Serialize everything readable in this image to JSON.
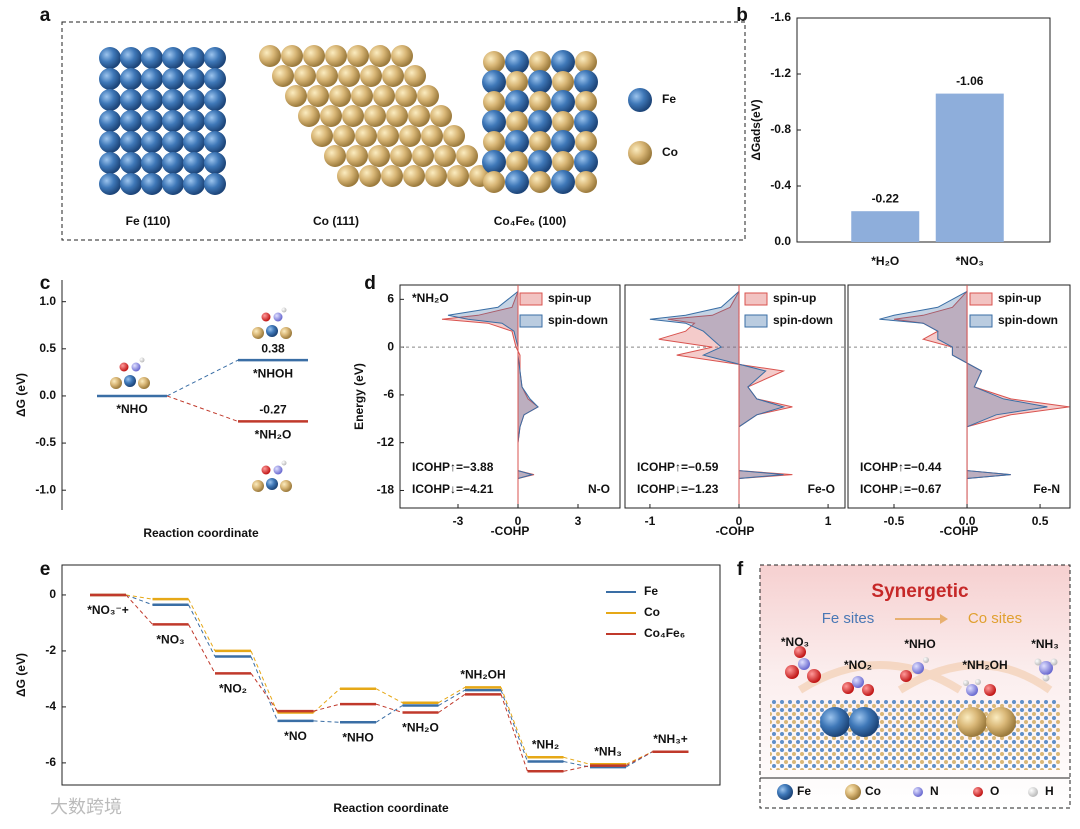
{
  "panel_labels": [
    "a",
    "b",
    "c",
    "d",
    "e",
    "f"
  ],
  "panel_a": {
    "surfaces": [
      "Fe (110)",
      "Co (111)",
      "Co₄Fe₆ (100)"
    ],
    "legend": [
      "Fe",
      "Co"
    ]
  },
  "chart_data": [
    {
      "type": "bar",
      "ylabel": "ΔGads(eV)",
      "categories": [
        "*H₂O",
        "*NO₃"
      ],
      "values": [
        -0.22,
        -1.06
      ],
      "color": "#8eaedb",
      "ylim": [
        0,
        -1.6
      ],
      "yticks": [
        -1.6,
        -1.2,
        -0.8,
        -0.4,
        {
          "value": 0,
          "label": "0.0"
        }
      ]
    },
    {
      "type": "energy_levels",
      "ylabel": "ΔG (eV)",
      "xlabel": "Reaction coordinate",
      "categories": [
        "*NHO",
        "*NHOH",
        "*NH₂O"
      ],
      "values": [
        0,
        0.38,
        -0.27
      ],
      "value_labels": [
        null,
        "0.38",
        "-0.27"
      ],
      "colors": [
        "#3a6ea5",
        "#3a6ea5",
        "#c0392b"
      ],
      "ylim": [
        -1.21,
        1.23
      ],
      "yticks": [
        {
          "value": -1,
          "label": "-1.0"
        },
        -0.5,
        {
          "value": 0,
          "label": "0.0"
        },
        0.5,
        {
          "value": 1,
          "label": "1.0"
        }
      ]
    },
    {
      "type": "cohp",
      "title": "*NH₂O",
      "bond": "N-O",
      "annotations": [
        "ICOHP↑=−3.88",
        "ICOHP↓=−4.21"
      ],
      "ylabel": "Energy (eV)",
      "xlabel": "-COHP",
      "y": [
        7,
        5,
        4,
        3.5,
        3,
        2,
        1,
        0,
        -1,
        -3,
        -5,
        -6.5,
        -7.5,
        -8.5,
        -10,
        -12,
        -15.5,
        -16,
        -16.5,
        -19
      ],
      "series": [
        {
          "name": "spin-up",
          "color": "#d9534f",
          "values": [
            0,
            -0.3,
            -2,
            -3.8,
            -1.5,
            -0.3,
            -0.2,
            -0.1,
            0.1,
            0.1,
            0.2,
            0.5,
            1.0,
            0.3,
            0.1,
            0,
            0,
            0.8,
            0,
            0
          ]
        },
        {
          "name": "spin-down",
          "color": "#3a6ea5",
          "values": [
            0,
            -1,
            -3.5,
            -2.5,
            -0.8,
            -0.2,
            -0.1,
            0,
            0,
            0.1,
            0.2,
            0.6,
            1.0,
            0.3,
            0.1,
            0,
            0,
            0.7,
            0,
            0
          ]
        }
      ],
      "xlim": [
        -5.9,
        5.1
      ],
      "xticks": [
        -3,
        0,
        3
      ],
      "ylim": [
        -20.2,
        7.8
      ],
      "yticks": [
        6,
        0,
        -6,
        -12,
        -18
      ]
    },
    {
      "type": "cohp",
      "bond": "Fe-O",
      "annotations": [
        "ICOHP↑=−0.59",
        "ICOHP↓=−1.23"
      ],
      "xlabel": "-COHP",
      "y": [
        7,
        5,
        4,
        3.5,
        3,
        2,
        1,
        0,
        -1,
        -3,
        -5,
        -6.5,
        -7.5,
        -8.5,
        -10,
        -12,
        -15.5,
        -16,
        -16.5,
        -19
      ],
      "series": [
        {
          "name": "spin-up",
          "color": "#d9534f",
          "values": [
            0,
            -0.1,
            -0.3,
            -0.8,
            -0.5,
            -0.6,
            -0.9,
            -0.3,
            -0.7,
            0.5,
            0.1,
            0.2,
            0.6,
            0.2,
            0,
            0,
            0,
            0.6,
            0,
            0
          ]
        },
        {
          "name": "spin-down",
          "color": "#3a6ea5",
          "values": [
            0,
            -0.2,
            -0.6,
            -1.0,
            -0.6,
            -0.4,
            -0.3,
            -0.2,
            -0.4,
            0.3,
            0.1,
            0.2,
            0.5,
            0.2,
            0,
            0,
            0,
            0.5,
            0,
            0
          ]
        }
      ],
      "xlim": [
        -1.28,
        1.19
      ],
      "xticks": [
        -1,
        0,
        1
      ],
      "ylim": [
        -20.2,
        7.8
      ]
    },
    {
      "type": "cohp",
      "bond": "Fe-N",
      "annotations": [
        "ICOHP↑=−0.44",
        "ICOHP↓=−0.67"
      ],
      "xlabel": "-COHP",
      "y": [
        7,
        5,
        4,
        3.5,
        3,
        2,
        1,
        0,
        -1,
        -3,
        -5,
        -6.5,
        -7.5,
        -8.5,
        -10,
        -12,
        -15.5,
        -16,
        -16.5,
        -19
      ],
      "series": [
        {
          "name": "spin-up",
          "color": "#d9534f",
          "values": [
            0,
            -0.1,
            -0.3,
            -0.5,
            -0.3,
            -0.2,
            -0.3,
            -0.1,
            -0.1,
            0.1,
            0.05,
            0.3,
            0.7,
            0.3,
            0,
            0,
            0,
            0.3,
            0,
            0
          ]
        },
        {
          "name": "spin-down",
          "color": "#3a6ea5",
          "values": [
            0,
            -0.2,
            -0.5,
            -0.6,
            -0.3,
            -0.2,
            -0.2,
            -0.1,
            -0.1,
            0.1,
            0.05,
            0.25,
            0.55,
            0.2,
            0,
            0,
            0,
            0.3,
            0,
            0
          ]
        }
      ],
      "xlim": [
        -0.815,
        0.705
      ],
      "xticks": [
        -0.5,
        {
          "value": 0,
          "label": "0.0"
        },
        0.5
      ],
      "ylim": [
        -20.2,
        7.8
      ]
    },
    {
      "type": "energy_profile",
      "ylabel": "ΔG (eV)",
      "xlabel": "Reaction coordinate",
      "categories": [
        "*NO₃⁻+",
        "*NO₃",
        "*NO₂",
        "*NO",
        "*NHO",
        "*NH₂O",
        "*NH₂OH",
        "*NH₂",
        "*NH₃",
        "*NH₃+"
      ],
      "series": [
        {
          "name": "Fe",
          "color": "#3a6ea5",
          "values": [
            0,
            -0.35,
            -2.2,
            -4.5,
            -4.55,
            -3.95,
            -3.4,
            -5.95,
            -6.15,
            -5.6
          ]
        },
        {
          "name": "Co",
          "color": "#e6a817",
          "values": [
            0,
            -0.15,
            -2.0,
            -4.2,
            -3.35,
            -3.85,
            -3.3,
            -5.8,
            -6.05,
            -5.6
          ]
        },
        {
          "name": "Co₄Fe₆",
          "color": "#c0392b",
          "values": [
            0,
            -1.05,
            -2.8,
            -4.15,
            -3.9,
            -4.2,
            -3.55,
            -6.3,
            -6.1,
            -5.6
          ]
        }
      ],
      "ylim": [
        -6.79,
        1.07
      ],
      "yticks": [
        0,
        -2,
        -4,
        -6
      ]
    }
  ],
  "panel_f": {
    "title": "Synergetic",
    "sites": [
      "Fe sites",
      "Co sites"
    ],
    "species": [
      "*NO₃",
      "*NO₂",
      "*NHO",
      "*NH₂OH",
      "*NH₃"
    ],
    "legend": [
      "Fe",
      "Co",
      "N",
      "O",
      "H"
    ]
  },
  "watermark": "大数跨境"
}
